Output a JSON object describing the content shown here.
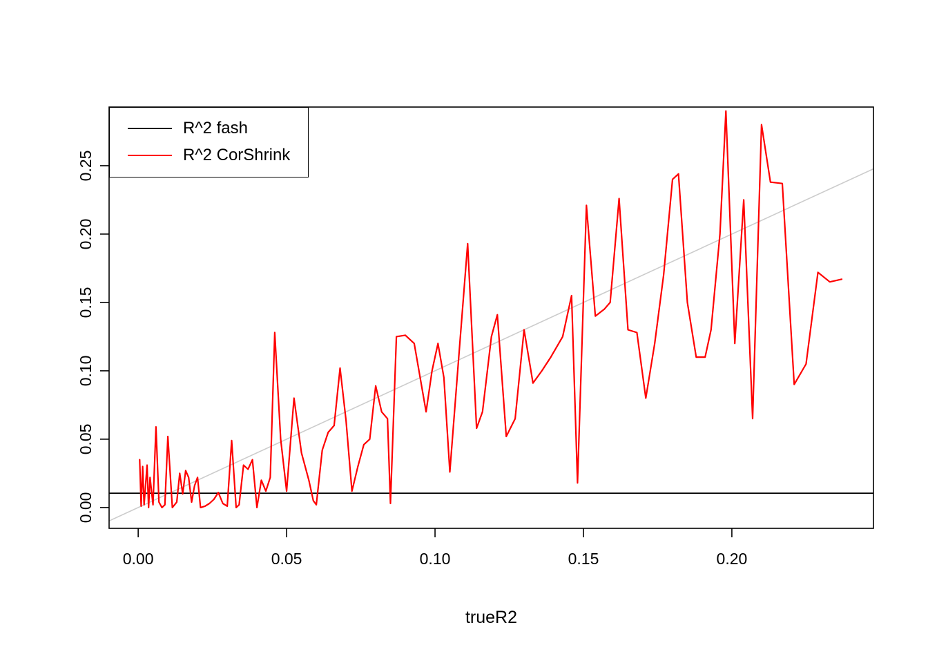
{
  "chart_data": {
    "type": "line",
    "title": "",
    "xlabel": "trueR2",
    "ylabel": "",
    "grid": false,
    "xlim": [
      -0.0098,
      0.2477
    ],
    "ylim": [
      -0.0152,
      0.2929
    ],
    "x_ticks": [
      {
        "value": 0.0,
        "label": "0.00"
      },
      {
        "value": 0.05,
        "label": "0.05"
      },
      {
        "value": 0.1,
        "label": "0.10"
      },
      {
        "value": 0.15,
        "label": "0.15"
      },
      {
        "value": 0.2,
        "label": "0.20"
      }
    ],
    "y_ticks": [
      {
        "value": 0.0,
        "label": "0.00"
      },
      {
        "value": 0.05,
        "label": "0.05"
      },
      {
        "value": 0.1,
        "label": "0.10"
      },
      {
        "value": 0.15,
        "label": "0.15"
      },
      {
        "value": 0.2,
        "label": "0.20"
      },
      {
        "value": 0.25,
        "label": "0.25"
      }
    ],
    "legend": {
      "position": "topleft",
      "entries": [
        {
          "label": "R^2 fash",
          "color": "#000000"
        },
        {
          "label": "R^2 CorShrink",
          "color": "#ff0000"
        }
      ]
    },
    "series": [
      {
        "name": "identity-reference-line",
        "type": "abline",
        "intercept": 0,
        "slope": 1,
        "color": "#cccccc",
        "width": 1.6
      },
      {
        "name": "R^2 fash",
        "type": "hline",
        "y": 0.0105,
        "color": "#000000",
        "width": 1.8
      },
      {
        "name": "R^2 CorShrink",
        "type": "line",
        "color": "#ff0000",
        "width": 2.2,
        "points": [
          [
            0.0005,
            0.035
          ],
          [
            0.001,
            0.001
          ],
          [
            0.0015,
            0.03
          ],
          [
            0.002,
            0.002
          ],
          [
            0.003,
            0.031
          ],
          [
            0.0035,
            0.0
          ],
          [
            0.004,
            0.022
          ],
          [
            0.005,
            0.002
          ],
          [
            0.006,
            0.059
          ],
          [
            0.007,
            0.004
          ],
          [
            0.008,
            0.0
          ],
          [
            0.009,
            0.002
          ],
          [
            0.01,
            0.052
          ],
          [
            0.0115,
            0.0
          ],
          [
            0.013,
            0.004
          ],
          [
            0.014,
            0.025
          ],
          [
            0.015,
            0.01
          ],
          [
            0.016,
            0.027
          ],
          [
            0.017,
            0.022
          ],
          [
            0.018,
            0.004
          ],
          [
            0.019,
            0.016
          ],
          [
            0.02,
            0.022
          ],
          [
            0.021,
            0.0
          ],
          [
            0.0225,
            0.001
          ],
          [
            0.024,
            0.003
          ],
          [
            0.0255,
            0.006
          ],
          [
            0.027,
            0.011
          ],
          [
            0.0285,
            0.003
          ],
          [
            0.03,
            0.001
          ],
          [
            0.0315,
            0.049
          ],
          [
            0.033,
            0.0
          ],
          [
            0.034,
            0.002
          ],
          [
            0.0355,
            0.031
          ],
          [
            0.037,
            0.028
          ],
          [
            0.0385,
            0.035
          ],
          [
            0.04,
            0.0
          ],
          [
            0.0415,
            0.02
          ],
          [
            0.043,
            0.012
          ],
          [
            0.0445,
            0.022
          ],
          [
            0.046,
            0.128
          ],
          [
            0.048,
            0.05
          ],
          [
            0.05,
            0.012
          ],
          [
            0.0525,
            0.08
          ],
          [
            0.055,
            0.04
          ],
          [
            0.0575,
            0.02
          ],
          [
            0.059,
            0.005
          ],
          [
            0.06,
            0.002
          ],
          [
            0.062,
            0.042
          ],
          [
            0.064,
            0.055
          ],
          [
            0.066,
            0.06
          ],
          [
            0.068,
            0.102
          ],
          [
            0.07,
            0.064
          ],
          [
            0.072,
            0.012
          ],
          [
            0.074,
            0.03
          ],
          [
            0.076,
            0.046
          ],
          [
            0.078,
            0.05
          ],
          [
            0.08,
            0.089
          ],
          [
            0.082,
            0.07
          ],
          [
            0.084,
            0.065
          ],
          [
            0.085,
            0.003
          ],
          [
            0.087,
            0.125
          ],
          [
            0.09,
            0.126
          ],
          [
            0.093,
            0.12
          ],
          [
            0.095,
            0.095
          ],
          [
            0.097,
            0.07
          ],
          [
            0.099,
            0.1
          ],
          [
            0.101,
            0.12
          ],
          [
            0.103,
            0.095
          ],
          [
            0.105,
            0.026
          ],
          [
            0.108,
            0.11
          ],
          [
            0.111,
            0.193
          ],
          [
            0.114,
            0.058
          ],
          [
            0.116,
            0.07
          ],
          [
            0.119,
            0.125
          ],
          [
            0.121,
            0.141
          ],
          [
            0.124,
            0.052
          ],
          [
            0.127,
            0.065
          ],
          [
            0.13,
            0.13
          ],
          [
            0.133,
            0.091
          ],
          [
            0.136,
            0.1
          ],
          [
            0.139,
            0.11
          ],
          [
            0.143,
            0.125
          ],
          [
            0.146,
            0.155
          ],
          [
            0.148,
            0.018
          ],
          [
            0.151,
            0.221
          ],
          [
            0.154,
            0.14
          ],
          [
            0.157,
            0.145
          ],
          [
            0.159,
            0.15
          ],
          [
            0.162,
            0.226
          ],
          [
            0.165,
            0.13
          ],
          [
            0.168,
            0.128
          ],
          [
            0.171,
            0.08
          ],
          [
            0.174,
            0.12
          ],
          [
            0.177,
            0.17
          ],
          [
            0.18,
            0.24
          ],
          [
            0.182,
            0.244
          ],
          [
            0.185,
            0.15
          ],
          [
            0.188,
            0.11
          ],
          [
            0.191,
            0.11
          ],
          [
            0.193,
            0.13
          ],
          [
            0.196,
            0.2
          ],
          [
            0.198,
            0.29
          ],
          [
            0.201,
            0.12
          ],
          [
            0.204,
            0.225
          ],
          [
            0.207,
            0.065
          ],
          [
            0.21,
            0.28
          ],
          [
            0.213,
            0.238
          ],
          [
            0.217,
            0.237
          ],
          [
            0.221,
            0.09
          ],
          [
            0.225,
            0.105
          ],
          [
            0.229,
            0.172
          ],
          [
            0.233,
            0.165
          ],
          [
            0.237,
            0.167
          ]
        ]
      }
    ],
    "styles": {
      "box_color": "#000000",
      "tick_label_size": 23,
      "axis_label_size": 25,
      "text_color": "#000000"
    }
  }
}
